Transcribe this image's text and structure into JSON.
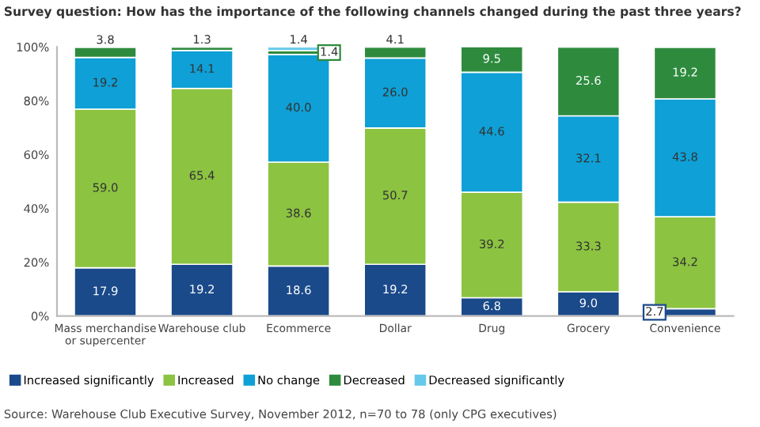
{
  "chart_data": {
    "type": "bar",
    "stacked": true,
    "title": "Survey question: How has the importance of the following channels changed during the past three years?",
    "categories": [
      "Mass merchandise\nor supercenter",
      "Warehouse club",
      "Ecommerce",
      "Dollar",
      "Drug",
      "Grocery",
      "Convenience"
    ],
    "series": [
      {
        "name": "Increased significantly",
        "color": "#1b4a8a",
        "values": [
          17.9,
          19.2,
          18.6,
          19.2,
          6.8,
          9.0,
          2.7
        ],
        "value_labels": [
          "17.9",
          "19.2",
          "18.6",
          "19.2",
          "6.8",
          "9.0",
          "2.7"
        ]
      },
      {
        "name": "Increased",
        "color": "#8cc341",
        "values": [
          59.0,
          65.4,
          38.6,
          50.7,
          39.2,
          33.3,
          34.2
        ],
        "value_labels": [
          "59.0",
          "65.4",
          "38.6",
          "50.7",
          "39.2",
          "33.3",
          "34.2"
        ]
      },
      {
        "name": "No change",
        "color": "#0ea0d6",
        "values": [
          19.2,
          14.1,
          40.0,
          26.0,
          44.6,
          32.1,
          43.8
        ],
        "value_labels": [
          "19.2",
          "14.1",
          "40.0",
          "26.0",
          "44.6",
          "32.1",
          "43.8"
        ]
      },
      {
        "name": "Decreased",
        "color": "#2e8b3e",
        "values": [
          3.8,
          1.3,
          1.4,
          4.1,
          9.5,
          25.6,
          19.2
        ],
        "value_labels": [
          "3.8",
          "1.3",
          "1.4",
          "4.1",
          "9.5",
          "25.6",
          "19.2"
        ]
      },
      {
        "name": "Decreased significantly",
        "color": "#66c9ea",
        "values": [
          null,
          null,
          1.4,
          null,
          null,
          null,
          null
        ],
        "value_labels": [
          null,
          null,
          "1.4",
          null,
          null,
          null,
          null
        ]
      }
    ],
    "ylim": [
      0,
      100
    ],
    "yticks": [
      {
        "value": 0,
        "label": "0%"
      },
      {
        "value": 20,
        "label": "20%"
      },
      {
        "value": 40,
        "label": "40%"
      },
      {
        "value": 60,
        "label": "60%"
      },
      {
        "value": 80,
        "label": "80%"
      },
      {
        "value": 100,
        "label": "100%"
      }
    ],
    "grid": false,
    "legend": "bottom",
    "annotations": [
      "Source: Warehouse Club Executive Survey, November 2012, n=70 to 78 (only CPG executives)"
    ]
  }
}
